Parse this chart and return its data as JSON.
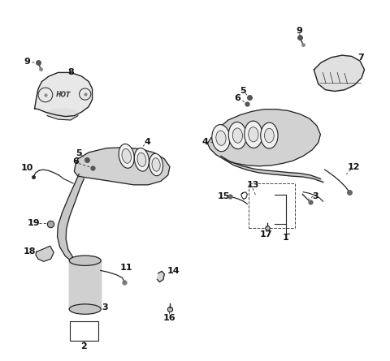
{
  "background_color": "#ffffff",
  "fig_width": 4.8,
  "fig_height": 4.45,
  "dpi": 100,
  "line_color": "#222222",
  "text_color": "#111111",
  "font_size": 8
}
